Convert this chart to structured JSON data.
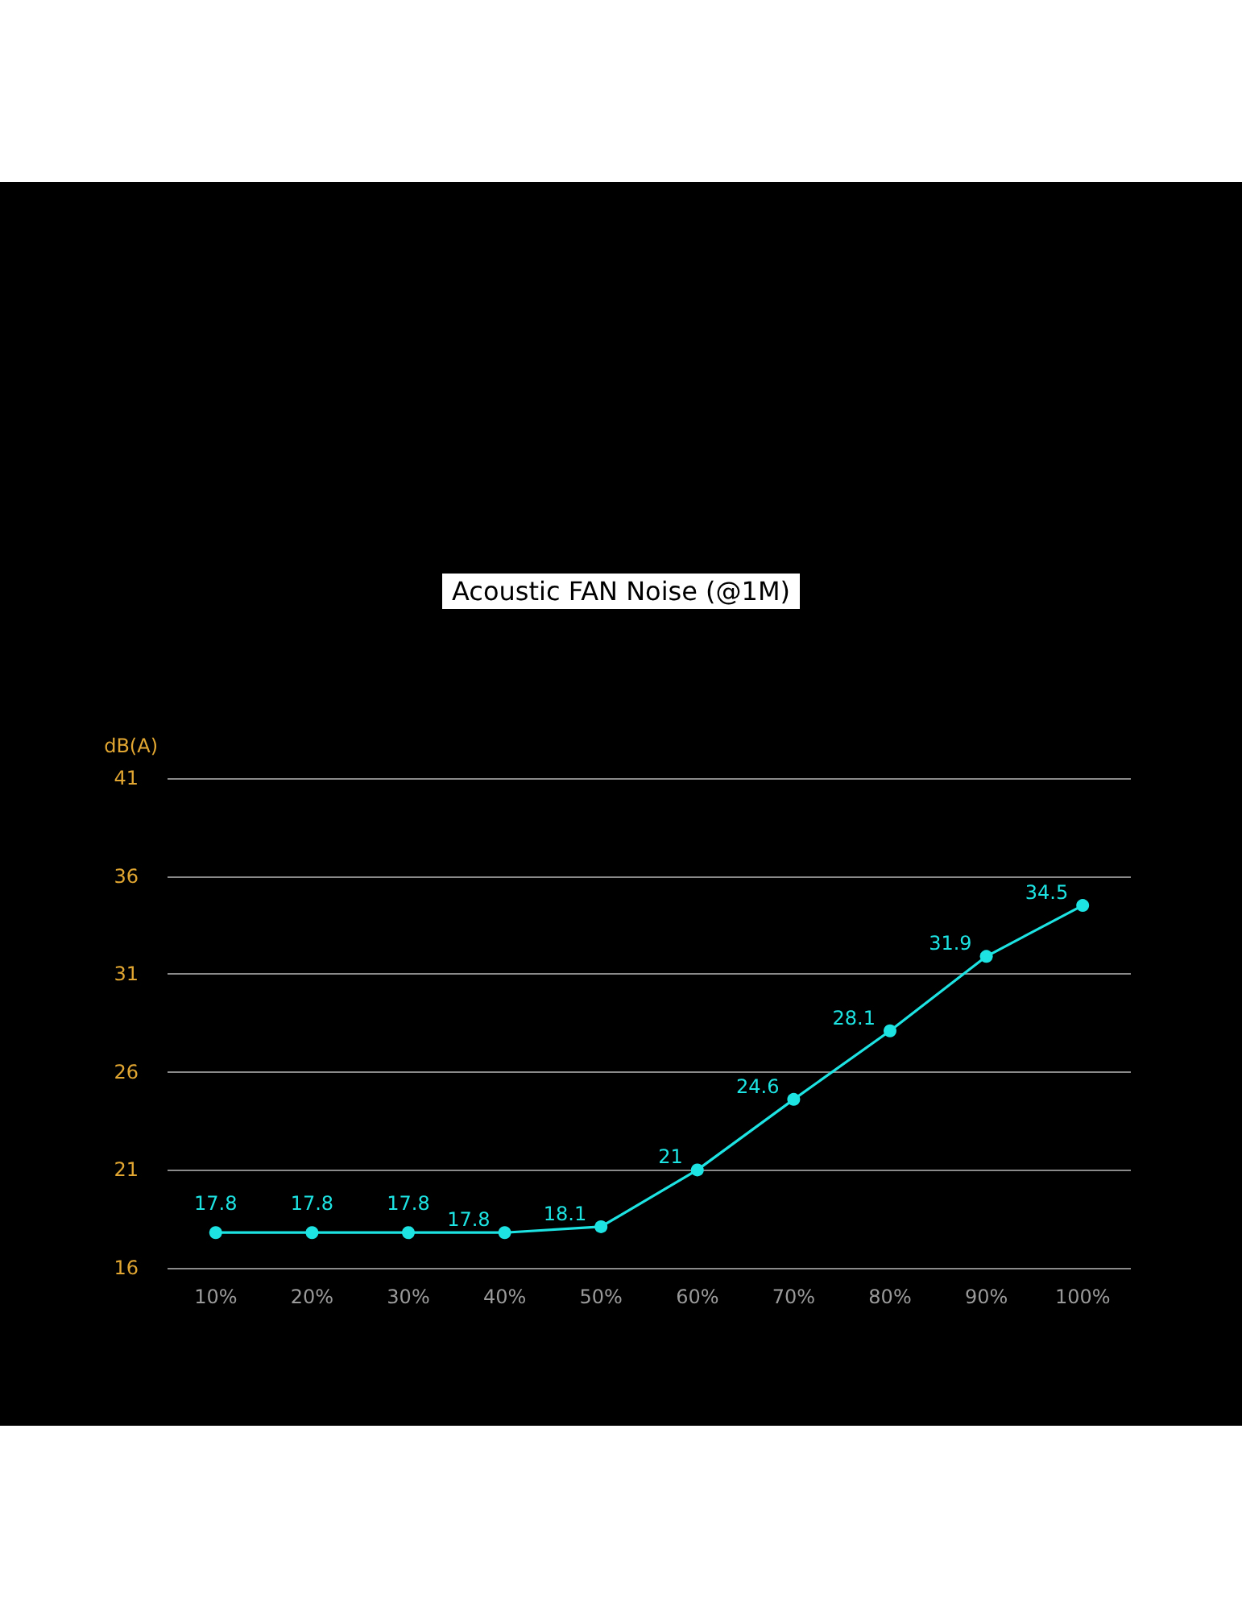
{
  "chart_data": {
    "type": "line",
    "title": "Acoustic FAN Noise (@1M)",
    "ylabel": "dB(A)",
    "categories": [
      "10%",
      "20%",
      "30%",
      "40%",
      "50%",
      "60%",
      "70%",
      "80%",
      "90%",
      "100%"
    ],
    "series": [
      {
        "color": "#1ee3e3",
        "values": [
          17.8,
          17.8,
          17.8,
          17.8,
          18.1,
          21,
          24.6,
          28.1,
          31.9,
          34.5
        ]
      }
    ],
    "ylim": [
      16,
      41
    ],
    "yticks": [
      16,
      21,
      26,
      31,
      36,
      41
    ],
    "grid": "y",
    "marker": "circle",
    "line_style": "solid",
    "data_labels": true
  }
}
